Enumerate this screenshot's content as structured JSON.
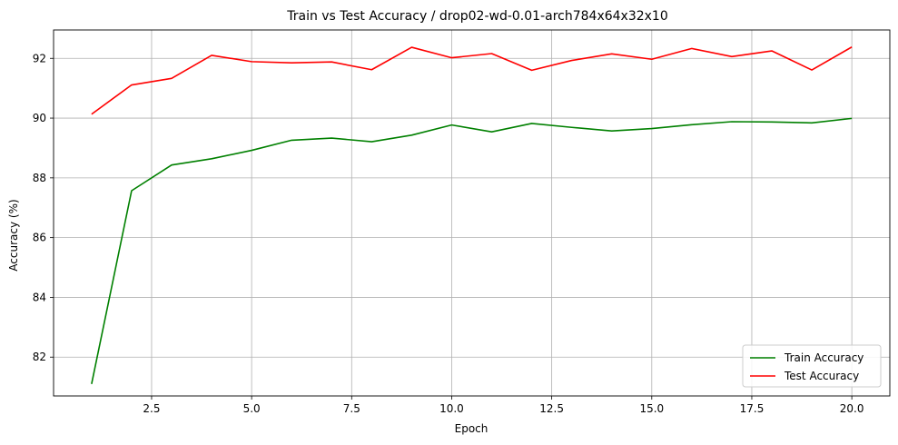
{
  "chart_data": {
    "type": "line",
    "title": "Train vs Test Accuracy / drop02-wd-0.01-arch784x64x32x10",
    "xlabel": "Epoch",
    "ylabel": "Accuracy (%)",
    "xlim": [
      0.05,
      20.95
    ],
    "ylim": [
      80.7,
      92.95
    ],
    "xticks": [
      2.5,
      5.0,
      7.5,
      10.0,
      12.5,
      15.0,
      17.5,
      20.0
    ],
    "xtick_labels": [
      "2.5",
      "5.0",
      "7.5",
      "10.0",
      "12.5",
      "15.0",
      "17.5",
      "20.0"
    ],
    "yticks": [
      82,
      84,
      86,
      88,
      90,
      92
    ],
    "ytick_labels": [
      "82",
      "84",
      "86",
      "88",
      "90",
      "92"
    ],
    "grid": true,
    "legend_position": "lower-right",
    "x": [
      1,
      2,
      3,
      4,
      5,
      6,
      7,
      8,
      9,
      10,
      11,
      12,
      13,
      14,
      15,
      16,
      17,
      18,
      19,
      20
    ],
    "series": [
      {
        "name": "Train Accuracy",
        "color": "#008000",
        "values": [
          81.1,
          87.57,
          88.43,
          88.64,
          88.92,
          89.26,
          89.33,
          89.21,
          89.43,
          89.77,
          89.54,
          89.82,
          89.69,
          89.57,
          89.65,
          89.78,
          89.88,
          89.87,
          89.84,
          89.99
        ]
      },
      {
        "name": "Test Accuracy",
        "color": "#ff0000",
        "values": [
          90.13,
          91.11,
          91.33,
          92.1,
          91.89,
          91.85,
          91.88,
          91.62,
          92.37,
          92.02,
          92.16,
          91.6,
          91.93,
          92.15,
          91.97,
          92.33,
          92.06,
          92.25,
          91.61,
          92.38
        ]
      }
    ]
  }
}
